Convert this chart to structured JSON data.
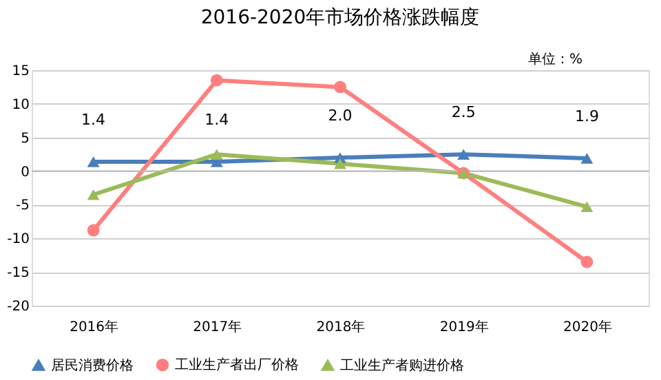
{
  "chart_data": {
    "type": "line",
    "title": "2016-2020年市场价格涨跌幅度",
    "annotations": [
      "单位：%"
    ],
    "categories": [
      "2016年",
      "2017年",
      "2018年",
      "2019年",
      "2020年"
    ],
    "series": [
      {
        "name": "居民消费价格",
        "color": "#4a7ebb",
        "marker": "triangle",
        "values": [
          1.4,
          1.4,
          2.0,
          2.5,
          1.9
        ],
        "value_labels": [
          "1.4",
          "1.4",
          "2.0",
          "2.5",
          "1.9"
        ]
      },
      {
        "name": "工业生产者出厂价格",
        "color": "#ff7f7f",
        "marker": "circle",
        "values": [
          -8.8,
          13.5,
          12.5,
          -0.3,
          -13.5
        ]
      },
      {
        "name": "工业生产者购进价格",
        "color": "#9bbb59",
        "marker": "triangle",
        "values": [
          -3.5,
          2.5,
          1.1,
          -0.3,
          -5.3
        ]
      }
    ],
    "ylim": [
      -20,
      15
    ],
    "yticks": [
      -20,
      -15,
      -10,
      -5,
      0,
      5,
      10,
      15
    ],
    "grid": "y",
    "legend": "bottom",
    "line_style": "solid"
  }
}
